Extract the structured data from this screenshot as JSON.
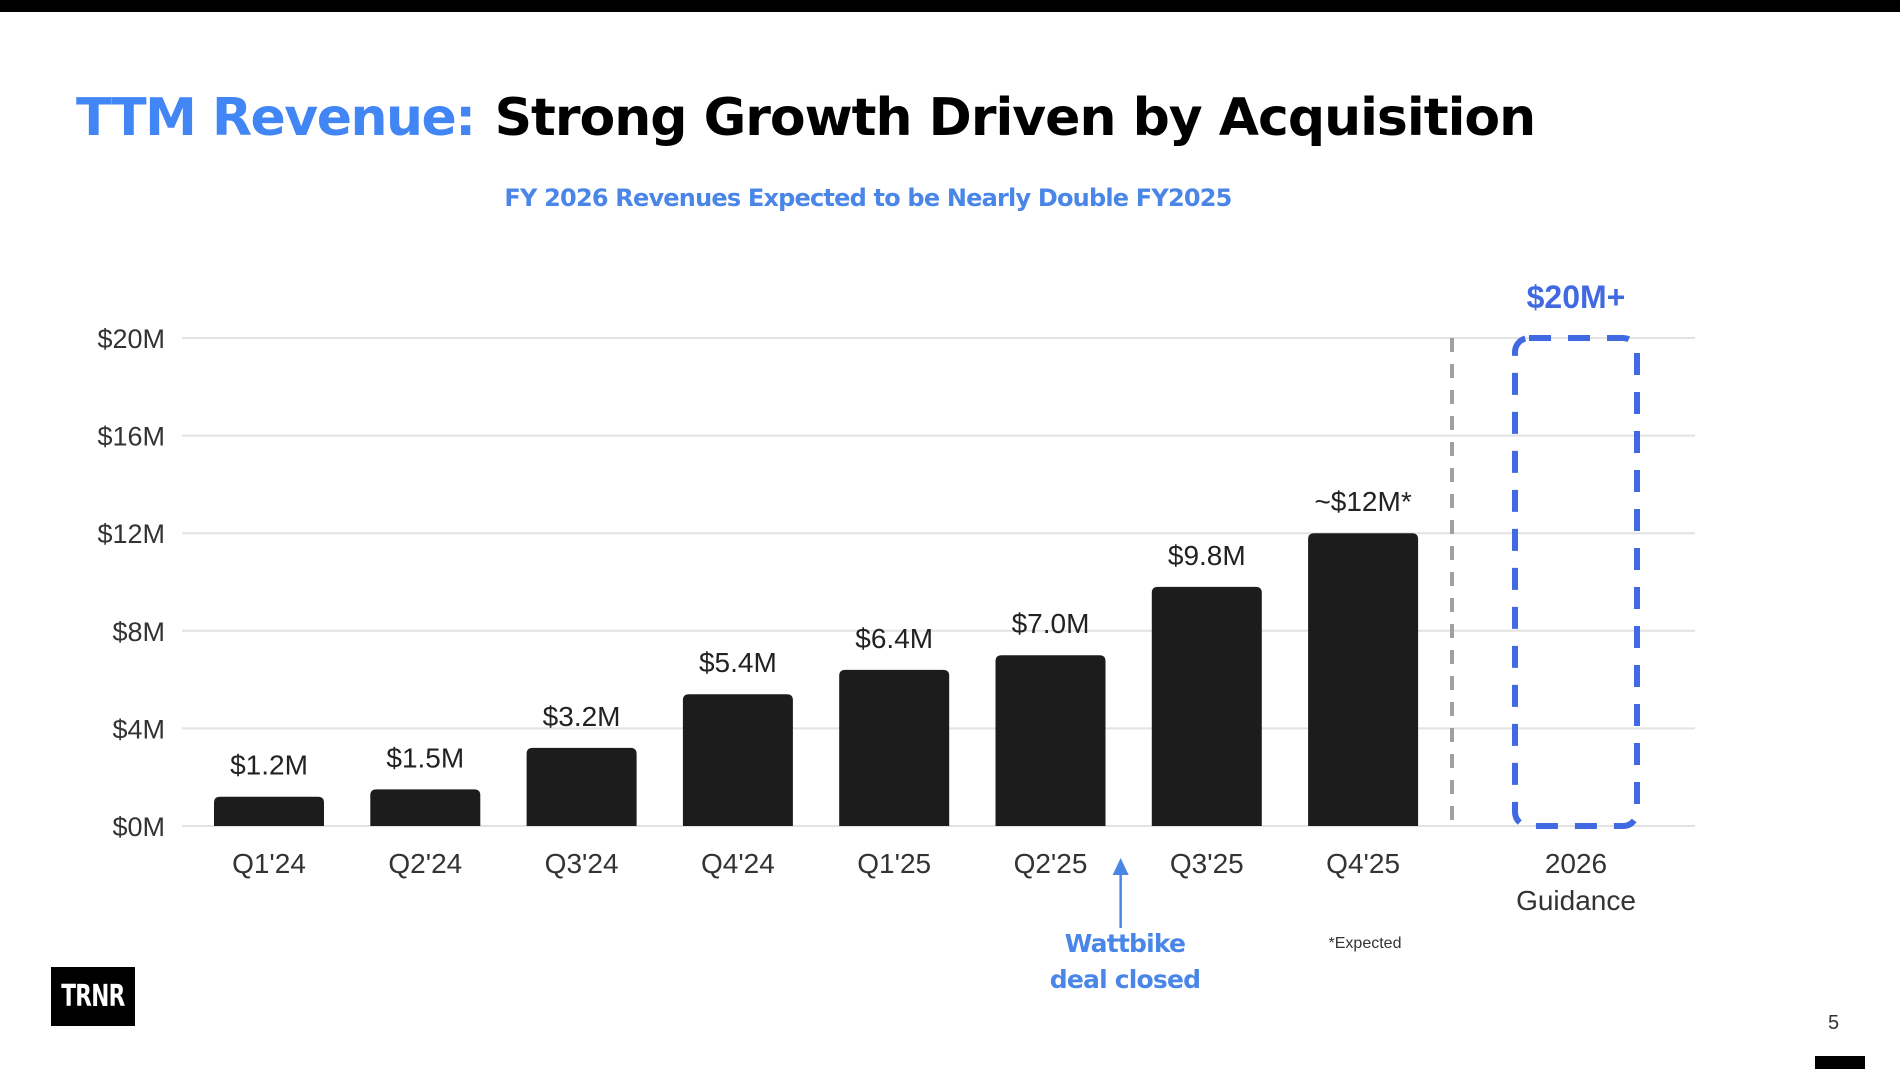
{
  "slide": {
    "title_accent": "TTM Revenue:",
    "title_main": "Strong Growth Driven by Acquisition",
    "subtitle": "FY 2026 Revenues Expected to be Nearly Double FY2025",
    "annotation_line1": "Wattbike",
    "annotation_line2": "deal closed",
    "footnote": "*Expected",
    "logo": "TRNR",
    "page_number": "5",
    "colors": {
      "accent": "#4285f4",
      "subtitle": "#4a86e8",
      "bar": "#1c1c1c",
      "guidance": "#4169e1",
      "separator": "#a0a0a0",
      "grid": "#e2e2e2"
    }
  },
  "chart_data": {
    "type": "bar",
    "title": "TTM Revenue",
    "xlabel": "",
    "ylabel": "",
    "ylim": [
      0,
      20
    ],
    "grid": true,
    "y_unit": "$M",
    "yticks": [
      0,
      4,
      8,
      12,
      16,
      20
    ],
    "ytick_labels": [
      "$0M",
      "$4M",
      "$8M",
      "$12M",
      "$16M",
      "$20M"
    ],
    "categories": [
      "Q1'24",
      "Q2'24",
      "Q3'24",
      "Q4'24",
      "Q1'25",
      "Q2'25",
      "Q3'25",
      "Q4'25"
    ],
    "values": [
      1.2,
      1.5,
      3.2,
      5.4,
      6.4,
      7.0,
      9.8,
      12.0
    ],
    "data_labels": [
      "$1.2M",
      "$1.5M",
      "$3.2M",
      "$5.4M",
      "$6.4M",
      "$7.0M",
      "$9.8M",
      "~$12M*"
    ],
    "guidance": {
      "category_line1": "2026",
      "category_line2": "Guidance",
      "value": 20,
      "label": "$20M+",
      "style": "dashed-outline"
    },
    "annotations": [
      {
        "text": "Wattbike deal closed",
        "between": [
          "Q2'25",
          "Q3'25"
        ],
        "type": "arrow-up"
      },
      {
        "text": "*Expected",
        "refers_to": "Q4'25"
      }
    ]
  }
}
